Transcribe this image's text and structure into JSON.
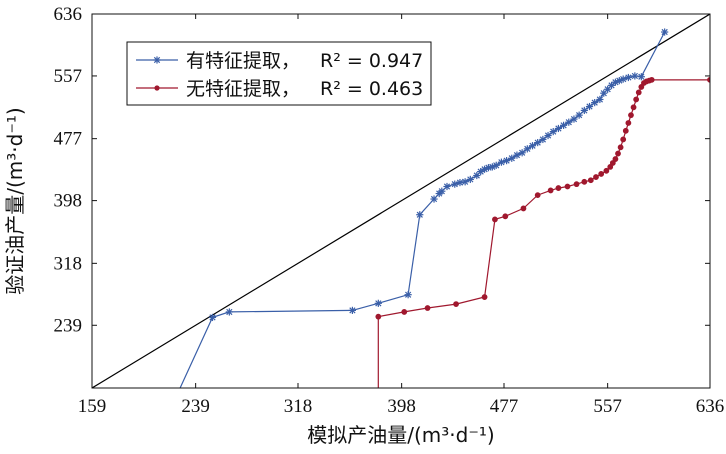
{
  "chart_data": {
    "type": "line",
    "title": "",
    "xlabel": "模拟产油量/(m³·d⁻¹)",
    "ylabel": "验证油产量/(m³·d⁻¹)",
    "xlim": [
      159,
      636
    ],
    "ylim": [
      159,
      636
    ],
    "x_ticks": [
      159,
      239,
      318,
      398,
      477,
      557,
      636
    ],
    "y_ticks": [
      239,
      318,
      398,
      477,
      557,
      636
    ],
    "x_tick_labels": [
      "159",
      "239",
      "318",
      "398",
      "477",
      "557",
      "636"
    ],
    "y_tick_labels": [
      "239",
      "318",
      "398",
      "477",
      "557",
      "636"
    ],
    "grid": false,
    "legend_position": "top-left",
    "reference_line": {
      "x": [
        159,
        636
      ],
      "y": [
        159,
        636
      ],
      "color": "#000000"
    },
    "series": [
      {
        "name": "有特征提取，",
        "r2_label": "R² = 0.947",
        "color": "#3A5FA8",
        "marker": "star",
        "points": [
          [
            227,
            159
          ],
          [
            252,
            249
          ],
          [
            265,
            256
          ],
          [
            360,
            258
          ],
          [
            380,
            267
          ],
          [
            403,
            278
          ],
          [
            412,
            380
          ],
          [
            423,
            400
          ],
          [
            427,
            407
          ],
          [
            429,
            410
          ],
          [
            433,
            416
          ],
          [
            439,
            419
          ],
          [
            443,
            421
          ],
          [
            447,
            422
          ],
          [
            451,
            425
          ],
          [
            456,
            430
          ],
          [
            459,
            435
          ],
          [
            462,
            438
          ],
          [
            465,
            440
          ],
          [
            468,
            441
          ],
          [
            471,
            443
          ],
          [
            475,
            447
          ],
          [
            479,
            449
          ],
          [
            483,
            452
          ],
          [
            487,
            456
          ],
          [
            491,
            459
          ],
          [
            495,
            464
          ],
          [
            499,
            468
          ],
          [
            503,
            472
          ],
          [
            507,
            476
          ],
          [
            511,
            481
          ],
          [
            515,
            486
          ],
          [
            519,
            490
          ],
          [
            523,
            494
          ],
          [
            527,
            498
          ],
          [
            531,
            502
          ],
          [
            535,
            507
          ],
          [
            539,
            513
          ],
          [
            543,
            518
          ],
          [
            547,
            523
          ],
          [
            551,
            527
          ],
          [
            554,
            535
          ],
          [
            557,
            540
          ],
          [
            560,
            545
          ],
          [
            563,
            549
          ],
          [
            566,
            551
          ],
          [
            569,
            553
          ],
          [
            573,
            555
          ],
          [
            578,
            557
          ],
          [
            583,
            556
          ],
          [
            601,
            613
          ]
        ]
      },
      {
        "name": "无特征提取，",
        "r2_label": "R² = 0.463",
        "color": "#A0182E",
        "marker": "dot",
        "points": [
          [
            380,
            159
          ],
          [
            380,
            250
          ],
          [
            400,
            256
          ],
          [
            418,
            261
          ],
          [
            440,
            266
          ],
          [
            462,
            275
          ],
          [
            470,
            374
          ],
          [
            478,
            378
          ],
          [
            492,
            388
          ],
          [
            503,
            405
          ],
          [
            513,
            411
          ],
          [
            519,
            414
          ],
          [
            526,
            416
          ],
          [
            533,
            419
          ],
          [
            539,
            422
          ],
          [
            544,
            424
          ],
          [
            548,
            428
          ],
          [
            552,
            432
          ],
          [
            556,
            436
          ],
          [
            559,
            441
          ],
          [
            561,
            446
          ],
          [
            563,
            451
          ],
          [
            565,
            458
          ],
          [
            567,
            466
          ],
          [
            569,
            476
          ],
          [
            571,
            487
          ],
          [
            573,
            497
          ],
          [
            575,
            507
          ],
          [
            577,
            517
          ],
          [
            579,
            527
          ],
          [
            581,
            536
          ],
          [
            583,
            543
          ],
          [
            585,
            548
          ],
          [
            587,
            550
          ],
          [
            589,
            551
          ],
          [
            591,
            552
          ],
          [
            636,
            552
          ]
        ]
      }
    ]
  }
}
